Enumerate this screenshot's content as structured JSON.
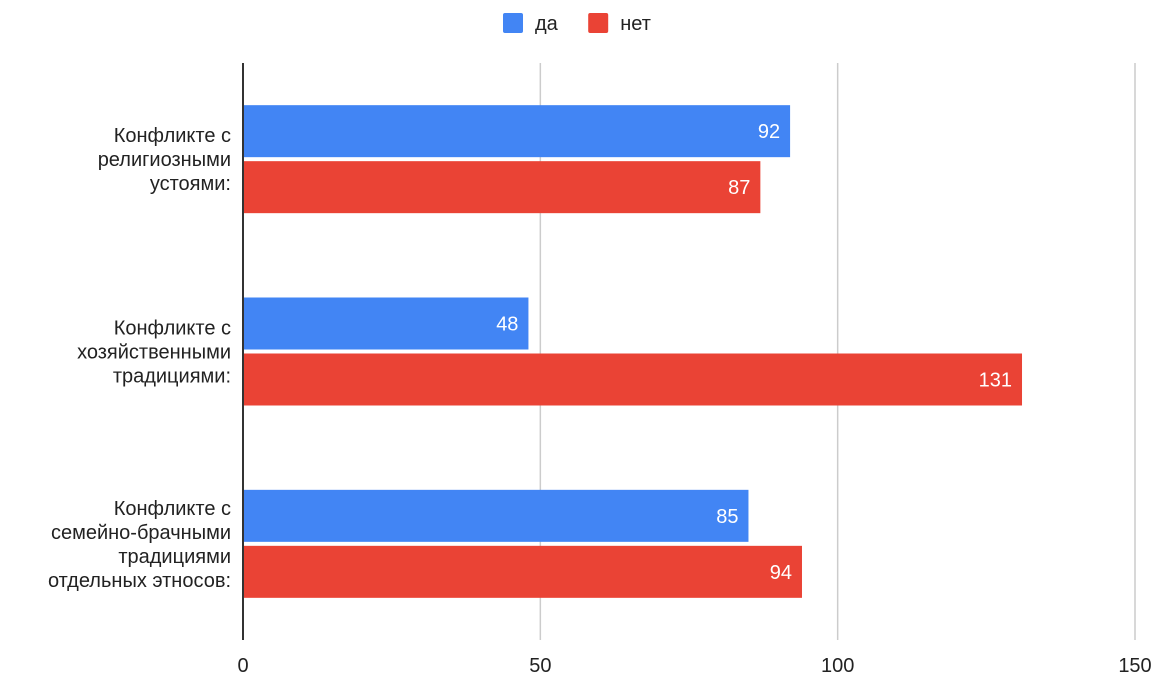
{
  "chart_data": {
    "type": "bar",
    "orientation": "horizontal",
    "categories": [
      [
        "Конфликте с",
        "религиозными",
        "устоями:"
      ],
      [
        "Конфликте с",
        "хозяйственными",
        "традициями:"
      ],
      [
        "Конфликте с",
        "семейно-брачными",
        "традициями",
        "отдельных этносов:"
      ]
    ],
    "series": [
      {
        "name": "да",
        "color": "#4285F4",
        "values": [
          92,
          48,
          85
        ]
      },
      {
        "name": "нет",
        "color": "#EA4335",
        "values": [
          87,
          131,
          94
        ]
      }
    ],
    "xlim": [
      0,
      150
    ],
    "x_ticks": [
      0,
      50,
      100,
      150
    ],
    "grid": true,
    "legend": "top-center",
    "data_labels": true,
    "title": "",
    "xlabel": "",
    "ylabel": ""
  }
}
